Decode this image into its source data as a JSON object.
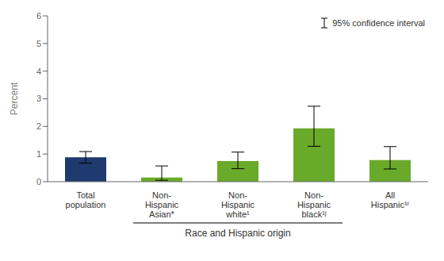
{
  "chart_data": {
    "type": "bar",
    "categories": [
      "Total\npopulation",
      "Non-\nHispanic\nAsian*",
      "Non-\nHispanic\nwhite¹",
      "Non-\nHispanic\nblack¹ʲ",
      "All\nHispanic¹ʳ"
    ],
    "values": [
      0.88,
      0.15,
      0.75,
      1.93,
      0.78
    ],
    "ci_lower": [
      0.67,
      0.05,
      0.47,
      1.28,
      0.46
    ],
    "ci_upper": [
      1.09,
      0.57,
      1.07,
      2.73,
      1.27
    ],
    "colors": [
      "#1e3a6e",
      "#6aaa2a",
      "#6aaa2a",
      "#6aaa2a",
      "#6aaa2a"
    ],
    "ylabel": "Percent",
    "xlabel": "Race and Hispanic origin",
    "xlabel_categories": [
      "Non-\nHispanic\nAsian*",
      "Non-\nHispanic\nblack¹ʲ"
    ],
    "error_bar_label": "95% confidence interval",
    "legend": "upper right",
    "ylim": [
      0,
      6
    ],
    "yticks": [
      0,
      1,
      2,
      3,
      4,
      5,
      6
    ],
    "grid": false
  }
}
